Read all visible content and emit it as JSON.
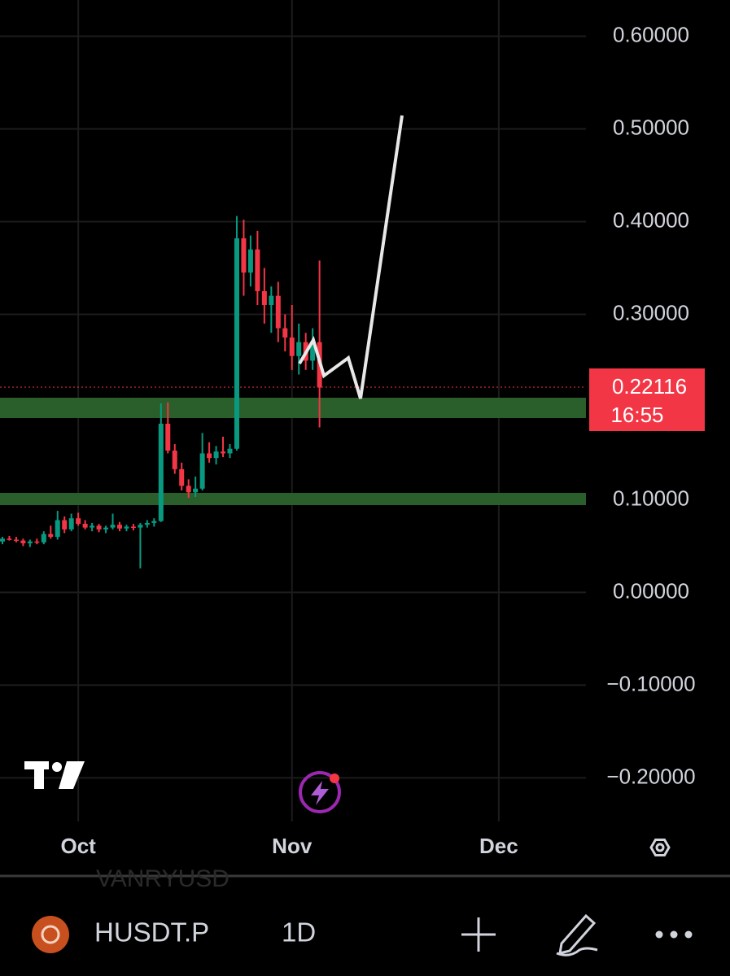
{
  "chart_data": {
    "type": "candlestick",
    "categories": [
      null,
      null,
      null,
      null,
      null,
      null,
      null,
      null,
      null,
      null,
      null,
      "Oct",
      null,
      null,
      null,
      null,
      null,
      null,
      null,
      null,
      null,
      null,
      null,
      null,
      null,
      null,
      null,
      null,
      null,
      null,
      null,
      null,
      null,
      null,
      null,
      null,
      null,
      null,
      null,
      null,
      null,
      null,
      "Nov",
      null,
      null,
      null,
      null,
      null,
      null,
      null,
      null,
      null,
      null,
      null,
      null,
      null,
      null,
      null,
      null,
      null,
      null,
      null,
      null,
      null,
      null,
      null,
      null,
      null,
      null,
      null,
      null,
      null,
      "Dec"
    ],
    "open": [
      0.055,
      0.058,
      0.057,
      0.056,
      0.053,
      0.055,
      0.054,
      0.063,
      0.06,
      0.078,
      0.068,
      0.08,
      0.074,
      0.07,
      0.072,
      0.068,
      0.07,
      0.073,
      0.069,
      0.071,
      0.07,
      0.073,
      0.075,
      0.077,
      0.182,
      0.153,
      0.133,
      0.115,
      0.108,
      0.112,
      0.15,
      0.145,
      0.152,
      0.15,
      0.155,
      0.382,
      0.345,
      0.37,
      0.325,
      0.31,
      0.32,
      0.285,
      0.275,
      0.255,
      0.27,
      0.25,
      0.27,
      null,
      null,
      null,
      null,
      null,
      null,
      null,
      null,
      null,
      null,
      null,
      null,
      null,
      null,
      null,
      null,
      null,
      null,
      null,
      null,
      null,
      null,
      null,
      null,
      null,
      null
    ],
    "high": [
      0.06,
      0.061,
      0.06,
      0.058,
      0.057,
      0.058,
      0.066,
      0.072,
      0.088,
      0.082,
      0.085,
      0.086,
      0.078,
      0.075,
      0.074,
      0.072,
      0.085,
      0.076,
      0.073,
      0.074,
      0.075,
      0.078,
      0.08,
      0.204,
      0.205,
      0.16,
      0.14,
      0.122,
      0.125,
      0.172,
      0.162,
      0.158,
      0.168,
      0.16,
      0.406,
      0.402,
      0.385,
      0.39,
      0.35,
      0.33,
      0.335,
      0.3,
      0.31,
      0.29,
      0.28,
      0.285,
      0.358,
      null,
      null,
      null,
      null,
      null,
      null,
      null,
      null,
      null,
      null,
      null,
      null,
      null,
      null,
      null,
      null,
      null,
      null,
      null,
      null,
      null,
      null,
      null,
      null,
      null,
      null
    ],
    "low": [
      0.052,
      0.056,
      0.054,
      0.05,
      0.049,
      0.052,
      0.052,
      0.058,
      0.057,
      0.064,
      0.066,
      0.072,
      0.068,
      0.066,
      0.065,
      0.064,
      0.068,
      0.066,
      0.066,
      0.067,
      0.026,
      0.07,
      0.071,
      0.076,
      0.15,
      0.128,
      0.11,
      0.102,
      0.103,
      0.11,
      0.14,
      0.138,
      0.146,
      0.145,
      0.153,
      0.32,
      0.33,
      0.31,
      0.29,
      0.28,
      0.27,
      0.26,
      0.24,
      0.235,
      0.24,
      0.24,
      0.178,
      null,
      null,
      null,
      null,
      null,
      null,
      null,
      null,
      null,
      null,
      null,
      null,
      null,
      null,
      null,
      null,
      null,
      null,
      null,
      null,
      null,
      null,
      null,
      null,
      null,
      null
    ],
    "close": [
      0.058,
      0.057,
      0.056,
      0.053,
      0.055,
      0.054,
      0.063,
      0.06,
      0.078,
      0.068,
      0.08,
      0.074,
      0.07,
      0.072,
      0.068,
      0.07,
      0.073,
      0.069,
      0.071,
      0.07,
      0.073,
      0.075,
      0.077,
      0.182,
      0.153,
      0.133,
      0.115,
      0.108,
      0.112,
      0.15,
      0.145,
      0.152,
      0.15,
      0.155,
      0.382,
      0.345,
      0.37,
      0.325,
      0.31,
      0.32,
      0.285,
      0.275,
      0.255,
      0.27,
      0.25,
      0.27,
      0.221,
      null,
      null,
      null,
      null,
      null,
      null,
      null,
      null,
      null,
      null,
      null,
      null,
      null,
      null,
      null,
      null,
      null,
      null,
      null,
      null,
      null,
      null,
      null,
      null,
      null,
      null
    ],
    "up_color": "#089981",
    "down_color": "#f23645",
    "ylim": [
      -0.247,
      0.639
    ],
    "yticks": [
      {
        "value": 0.6,
        "label": "0.60000"
      },
      {
        "value": 0.5,
        "label": "0.50000"
      },
      {
        "value": 0.4,
        "label": "0.40000"
      },
      {
        "value": 0.3,
        "label": "0.30000"
      },
      {
        "value": 0.1,
        "label": "0.10000"
      },
      {
        "value": 0,
        "label": "0.00000"
      },
      {
        "value": -0.1,
        "label": "−0.10000"
      },
      {
        "value": -0.2,
        "label": "−0.20000"
      }
    ],
    "grid": true
  },
  "price_label": "0.22116",
  "countdown": "16:55",
  "ghost_symbol": "VANRYUSD",
  "toolbar": {
    "symbol": "HUSDT.P",
    "interval": "1D"
  }
}
